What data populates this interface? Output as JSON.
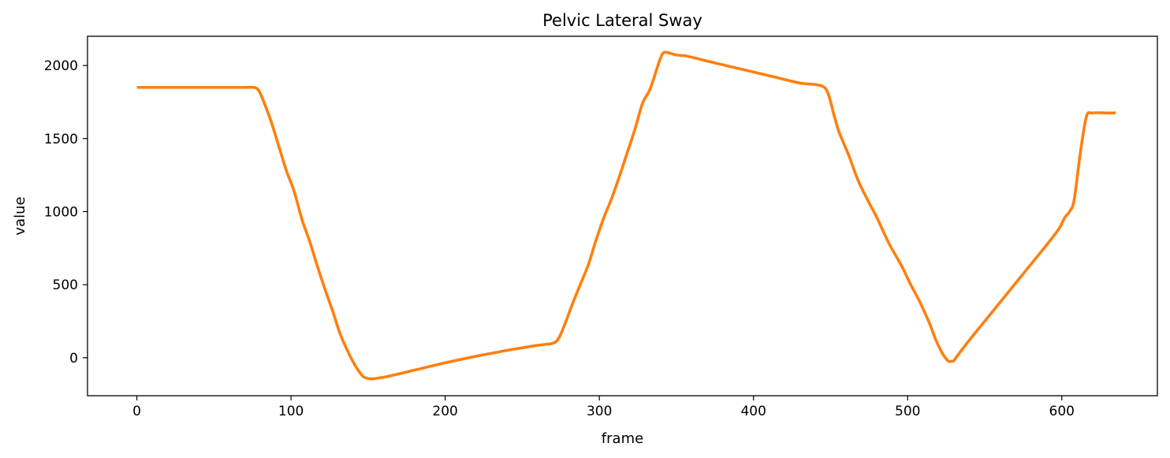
{
  "chart_data": {
    "type": "line",
    "title": "Pelvic Lateral Sway",
    "xlabel": "frame",
    "ylabel": "value",
    "xlim": [
      -32,
      662
    ],
    "ylim": [
      -260,
      2200
    ],
    "x_ticks": [
      0,
      100,
      200,
      300,
      400,
      500,
      600
    ],
    "y_ticks": [
      0,
      500,
      1000,
      1500,
      2000
    ],
    "grid": false,
    "legend": "none",
    "series": [
      {
        "color": "#ff7f0e",
        "x": [
          0,
          20,
          40,
          60,
          70,
          76,
          79,
          82,
          87,
          92,
          97,
          102,
          107,
          112,
          117,
          122,
          127,
          132,
          137,
          142,
          147,
          152,
          156,
          159,
          162,
          180,
          200,
          220,
          240,
          260,
          270,
          274,
          278,
          283,
          288,
          293,
          298,
          303,
          308,
          313,
          318,
          323,
          328,
          333,
          338,
          341,
          344,
          347,
          350,
          353,
          357,
          370,
          390,
          410,
          430,
          440,
          446,
          449,
          452,
          455,
          458,
          462,
          468,
          475,
          480,
          488,
          496,
          502,
          508,
          514,
          518,
          522,
          526,
          528,
          530,
          532,
          540,
          550,
          560,
          570,
          580,
          590,
          598,
          602,
          605,
          608,
          612,
          616,
          620,
          630,
          635
        ],
        "y": [
          1850,
          1850,
          1850,
          1850,
          1850,
          1850,
          1830,
          1760,
          1620,
          1450,
          1280,
          1140,
          950,
          800,
          630,
          470,
          320,
          160,
          40,
          -60,
          -130,
          -145,
          -140,
          -135,
          -130,
          -85,
          -35,
          10,
          50,
          85,
          100,
          140,
          240,
          380,
          510,
          640,
          810,
          960,
          1090,
          1240,
          1400,
          1560,
          1740,
          1840,
          2000,
          2080,
          2090,
          2080,
          2072,
          2068,
          2064,
          2030,
          1980,
          1930,
          1880,
          1870,
          1850,
          1790,
          1670,
          1560,
          1480,
          1380,
          1210,
          1060,
          960,
          780,
          630,
          500,
          380,
          240,
          130,
          40,
          -20,
          -25,
          -20,
          10,
          120,
          250,
          380,
          510,
          640,
          770,
          880,
          960,
          1000,
          1080,
          1400,
          1650,
          1675,
          1675,
          1675
        ]
      }
    ]
  }
}
